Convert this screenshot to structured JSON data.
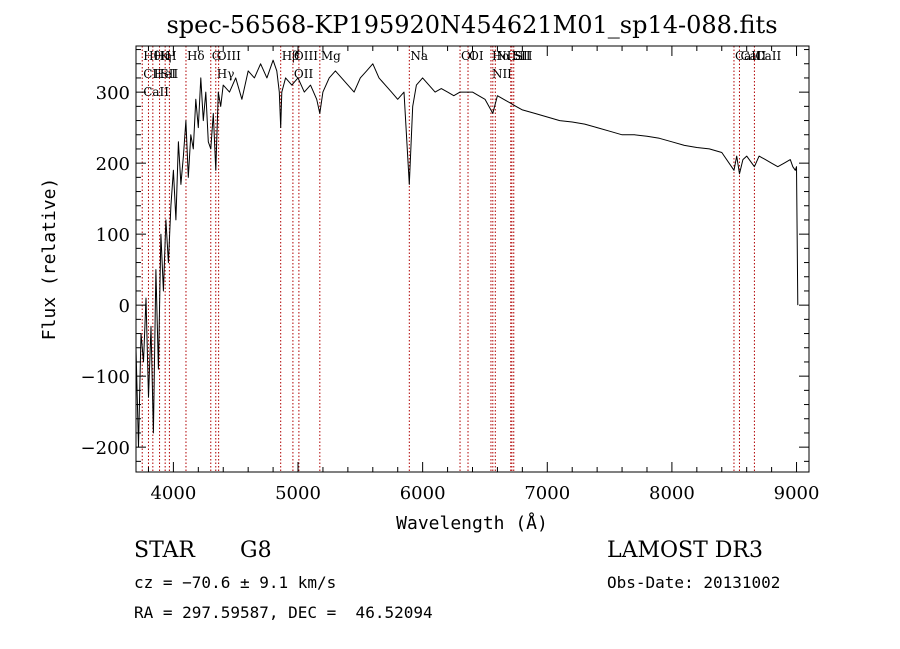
{
  "chart_data": {
    "type": "line",
    "title": "spec-56568-KP195920N454621M01_sp14-088.fits",
    "xlabel": "Wavelength (Å)",
    "ylabel": "Flux (relative)",
    "xlim": [
      3700,
      9100
    ],
    "ylim": [
      -235,
      365
    ],
    "xticks": [
      4000,
      5000,
      6000,
      7000,
      8000,
      9000
    ],
    "xtick_labels": [
      "4000",
      "5000",
      "6000",
      "7000",
      "8000",
      "9000"
    ],
    "yticks": [
      -200,
      -100,
      0,
      100,
      200,
      300
    ],
    "ytick_labels": [
      "−200",
      "−100",
      "0",
      "100",
      "200",
      "300"
    ],
    "grid": false,
    "series": [
      {
        "name": "flux",
        "x": [
          3700,
          3720,
          3740,
          3760,
          3780,
          3800,
          3820,
          3840,
          3860,
          3880,
          3900,
          3920,
          3940,
          3960,
          3980,
          4000,
          4020,
          4040,
          4060,
          4080,
          4100,
          4120,
          4140,
          4160,
          4180,
          4200,
          4220,
          4240,
          4260,
          4280,
          4300,
          4320,
          4340,
          4360,
          4380,
          4400,
          4450,
          4500,
          4550,
          4600,
          4650,
          4700,
          4750,
          4800,
          4830,
          4850,
          4861,
          4870,
          4900,
          4950,
          5000,
          5050,
          5100,
          5150,
          5175,
          5200,
          5250,
          5300,
          5350,
          5400,
          5450,
          5500,
          5550,
          5600,
          5650,
          5700,
          5750,
          5800,
          5850,
          5893,
          5920,
          5950,
          6000,
          6050,
          6100,
          6150,
          6200,
          6250,
          6300,
          6350,
          6400,
          6450,
          6500,
          6563,
          6600,
          6650,
          6700,
          6750,
          6800,
          6900,
          7000,
          7100,
          7200,
          7300,
          7400,
          7500,
          7600,
          7700,
          7800,
          7900,
          8000,
          8100,
          8200,
          8300,
          8400,
          8498,
          8520,
          8542,
          8570,
          8600,
          8662,
          8700,
          8750,
          8800,
          8850,
          8900,
          8950,
          8970,
          8990,
          9000,
          9010
        ],
        "y": [
          -60,
          -200,
          -40,
          -80,
          10,
          -130,
          -30,
          -180,
          50,
          -90,
          100,
          20,
          120,
          60,
          140,
          190,
          120,
          230,
          170,
          210,
          260,
          180,
          240,
          220,
          290,
          250,
          320,
          260,
          300,
          230,
          220,
          270,
          190,
          300,
          280,
          310,
          300,
          320,
          290,
          330,
          320,
          340,
          320,
          345,
          330,
          300,
          250,
          300,
          320,
          310,
          320,
          300,
          310,
          290,
          270,
          300,
          320,
          330,
          320,
          310,
          300,
          320,
          330,
          340,
          320,
          310,
          300,
          290,
          300,
          170,
          280,
          310,
          320,
          310,
          300,
          305,
          300,
          295,
          300,
          300,
          300,
          295,
          290,
          270,
          295,
          290,
          285,
          280,
          275,
          270,
          265,
          260,
          258,
          255,
          250,
          245,
          240,
          240,
          238,
          235,
          230,
          225,
          222,
          220,
          215,
          190,
          210,
          185,
          205,
          210,
          195,
          210,
          205,
          200,
          195,
          200,
          205,
          195,
          190,
          195,
          0
        ]
      }
    ],
    "lines": [
      {
        "x": 3750,
        "labels": [
          "Hθ",
          "CII",
          "CaII"
        ]
      },
      {
        "x": 3800,
        "labels": []
      },
      {
        "x": 3835,
        "labels": [
          "Hη",
          "HeI"
        ]
      },
      {
        "x": 3889,
        "labels": [
          "K",
          "SII"
        ]
      },
      {
        "x": 3934,
        "labels": [
          "H"
        ]
      },
      {
        "x": 3968,
        "labels": []
      },
      {
        "x": 4101,
        "labels": [
          "Hδ"
        ]
      },
      {
        "x": 4300,
        "labels": [
          "G"
        ]
      },
      {
        "x": 4340,
        "labels": [
          "OIII",
          "Hγ"
        ]
      },
      {
        "x": 4363,
        "labels": []
      },
      {
        "x": 4861,
        "labels": [
          "Hβ"
        ]
      },
      {
        "x": 4959,
        "labels": [
          "OIII",
          "OII"
        ]
      },
      {
        "x": 5007,
        "labels": []
      },
      {
        "x": 5175,
        "labels": [
          "Mg"
        ]
      },
      {
        "x": 5893,
        "labels": [
          "Na"
        ]
      },
      {
        "x": 6300,
        "labels": [
          "OI"
        ]
      },
      {
        "x": 6364,
        "labels": [
          "OI"
        ]
      },
      {
        "x": 6548,
        "labels": [
          "Hα",
          "NII"
        ]
      },
      {
        "x": 6563,
        "labels": []
      },
      {
        "x": 6583,
        "labels": [
          "NII"
        ]
      },
      {
        "x": 6707,
        "labels": [
          "Li"
        ]
      },
      {
        "x": 6716,
        "labels": [
          "SII"
        ]
      },
      {
        "x": 6731,
        "labels": [
          "SII"
        ]
      },
      {
        "x": 8498,
        "labels": [
          "CaII"
        ]
      },
      {
        "x": 8542,
        "labels": [
          "CaII"
        ]
      },
      {
        "x": 8662,
        "labels": [
          "CaII"
        ]
      }
    ]
  },
  "info": {
    "object_class": "STAR",
    "subclass": "G8",
    "survey": "LAMOST DR3",
    "redshift": "cz = −70.6 ± 9.1 km/s",
    "obs_date": "Obs-Date: 20131002",
    "coords": "RA = 297.59587, DEC =  46.52094"
  },
  "colors": {
    "spectrum": "#000000",
    "line_markers": "#b00000",
    "axes": "#000000"
  }
}
